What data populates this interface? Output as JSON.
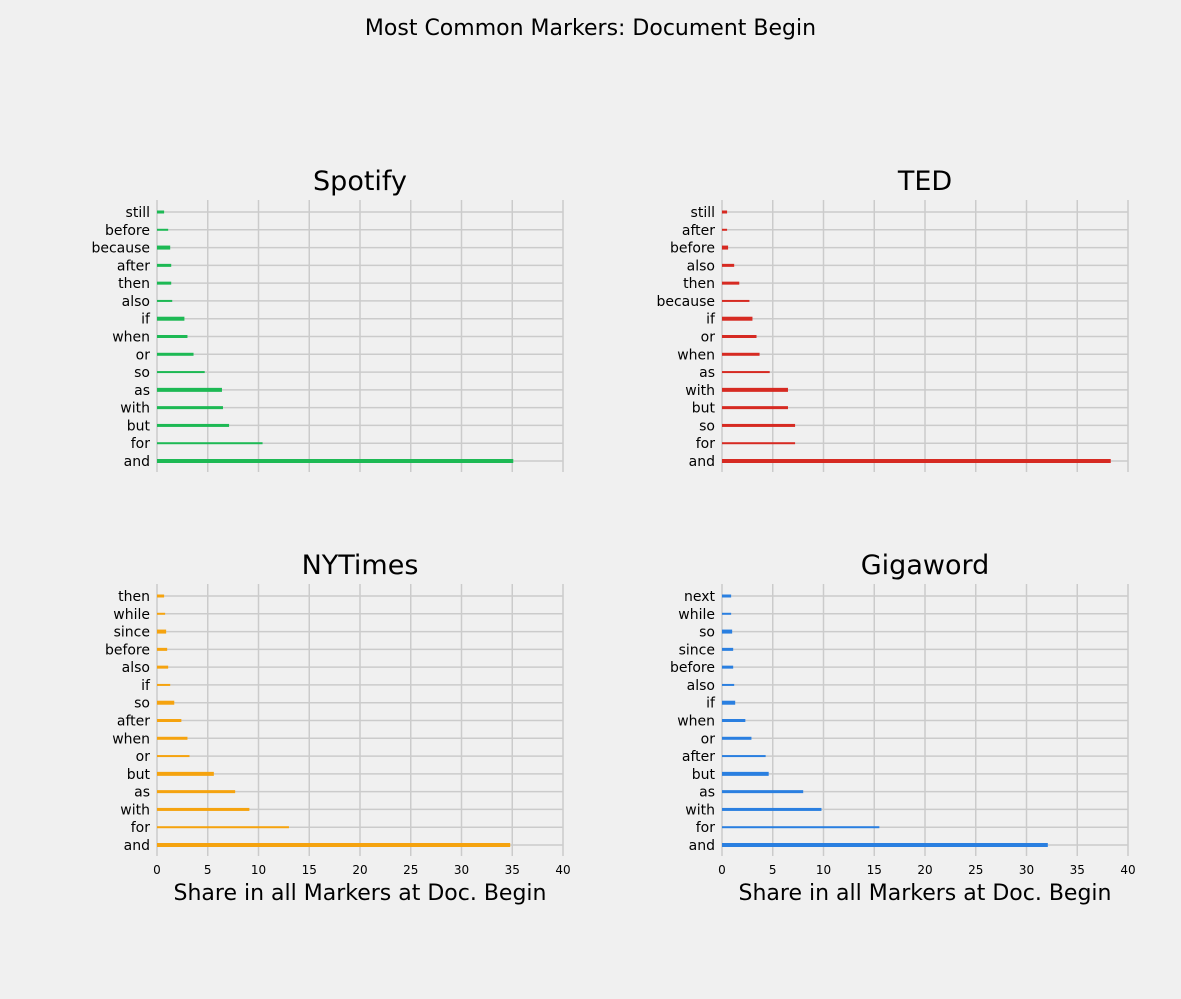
{
  "suptitle": "Most Common Markers: Document Begin",
  "chart_data": [
    {
      "type": "bar",
      "orientation": "horizontal",
      "title": "Spotify",
      "color": "#1db954",
      "xlabel": "",
      "xlim": [
        0,
        40
      ],
      "xticks": [
        0,
        5,
        10,
        15,
        20,
        25,
        30,
        35,
        40
      ],
      "show_tick_labels": false,
      "grid": true,
      "categories": [
        "still",
        "before",
        "because",
        "after",
        "then",
        "also",
        "if",
        "when",
        "or",
        "so",
        "as",
        "with",
        "but",
        "for",
        "and"
      ],
      "values": [
        0.7,
        1.1,
        1.3,
        1.4,
        1.4,
        1.5,
        2.7,
        3.0,
        3.6,
        4.7,
        6.4,
        6.5,
        7.1,
        10.4,
        35.1
      ]
    },
    {
      "type": "bar",
      "orientation": "horizontal",
      "title": "TED",
      "color": "#d62a22",
      "xlabel": "",
      "xlim": [
        0,
        40
      ],
      "xticks": [
        0,
        5,
        10,
        15,
        20,
        25,
        30,
        35,
        40
      ],
      "show_tick_labels": false,
      "grid": true,
      "categories": [
        "still",
        "after",
        "before",
        "also",
        "then",
        "because",
        "if",
        "or",
        "when",
        "as",
        "with",
        "but",
        "so",
        "for",
        "and"
      ],
      "values": [
        0.5,
        0.5,
        0.6,
        1.2,
        1.7,
        2.7,
        3.0,
        3.4,
        3.7,
        4.7,
        6.5,
        6.5,
        7.2,
        7.2,
        38.3
      ]
    },
    {
      "type": "bar",
      "orientation": "horizontal",
      "title": "NYTimes",
      "color": "#f5a30f",
      "xlabel": "Share in all Markers at Doc. Begin",
      "xlim": [
        0,
        40
      ],
      "xticks": [
        0,
        5,
        10,
        15,
        20,
        25,
        30,
        35,
        40
      ],
      "show_tick_labels": true,
      "grid": true,
      "categories": [
        "then",
        "while",
        "since",
        "before",
        "also",
        "if",
        "so",
        "after",
        "when",
        "or",
        "but",
        "as",
        "with",
        "for",
        "and"
      ],
      "values": [
        0.7,
        0.8,
        0.9,
        1.0,
        1.1,
        1.3,
        1.7,
        2.4,
        3.0,
        3.2,
        5.6,
        7.7,
        9.1,
        13.0,
        34.8
      ]
    },
    {
      "type": "bar",
      "orientation": "horizontal",
      "title": "Gigaword",
      "color": "#2a7fe0",
      "xlabel": "Share in all Markers at Doc. Begin",
      "xlim": [
        0,
        40
      ],
      "xticks": [
        0,
        5,
        10,
        15,
        20,
        25,
        30,
        35,
        40
      ],
      "show_tick_labels": true,
      "grid": true,
      "categories": [
        "next",
        "while",
        "so",
        "since",
        "before",
        "also",
        "if",
        "when",
        "or",
        "after",
        "but",
        "as",
        "with",
        "for",
        "and"
      ],
      "values": [
        0.9,
        0.9,
        1.0,
        1.1,
        1.1,
        1.2,
        1.3,
        2.3,
        2.9,
        4.3,
        4.6,
        8.0,
        9.8,
        15.5,
        32.1
      ]
    }
  ]
}
